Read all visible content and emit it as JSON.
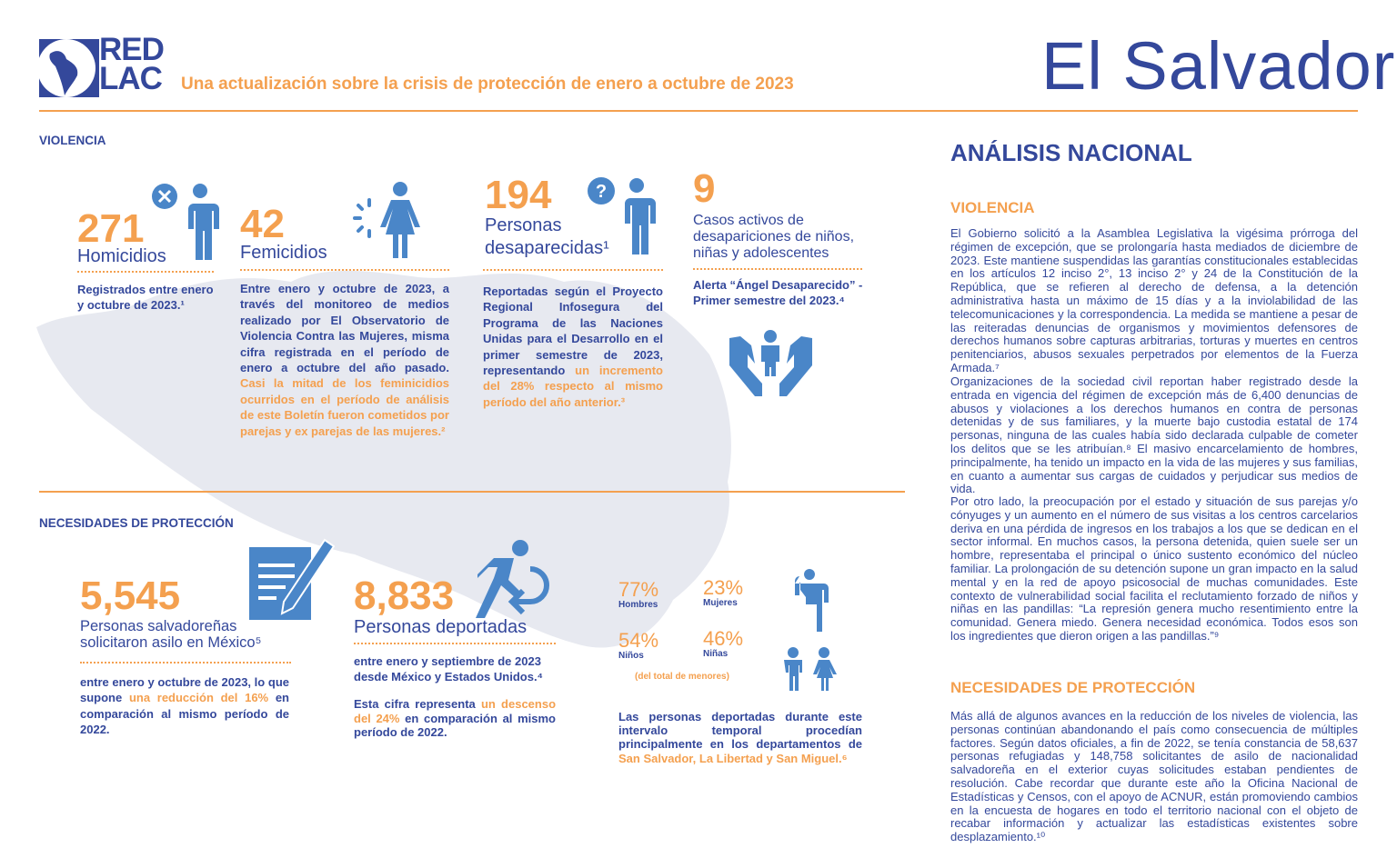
{
  "header": {
    "logo_text": [
      "RED",
      "LAC"
    ],
    "subtitle": "Una actualización sobre la crisis de protección de enero a octubre de 2023",
    "country": "El Salvador"
  },
  "colors": {
    "navy": "#34489b",
    "orange": "#f4a04f",
    "icon_blue": "#4a86c8",
    "map_gray": "#e7e9f0"
  },
  "violencia": {
    "section_label": "VIOLENCIA",
    "homicidios": {
      "number": "271",
      "label": "Homicidios",
      "text": "Registrados entre enero y octubre de 2023.¹",
      "icon": "person-x-icon"
    },
    "femicidios": {
      "number": "42",
      "label": "Femicidios",
      "text": "Entre enero y octubre de 2023, a través del monitoreo de medios realizado por El Observatorio de Violencia Contra las Mujeres, misma cifra registrada en el período de enero a octubre del año pasado. ",
      "highlight": "Casi la mitad de los feminicidios ocurridos en el período de análisis de este Boletín fueron cometidos por parejas y ex parejas de las mujeres.²",
      "icon": "woman-icon"
    },
    "desaparecidas": {
      "number": "194",
      "label1": "Personas",
      "label2": "desaparecidas¹",
      "text": "Reportadas según el Proyecto Regional Infosegura del Programa de las Naciones Unidas para el Desarrollo en el primer semestre de 2023, representando ",
      "highlight": "un incremento del 28% respecto al mismo período del año anterior.³",
      "icon": "person-question-icon"
    },
    "casos": {
      "number": "9",
      "label": "Casos activos de desapariciones de niños, niñas y adolescentes",
      "text": "Alerta “Ángel Desaparecido” - Primer semestre del 2023.⁴",
      "icon": "hands-child-icon"
    }
  },
  "necesidades": {
    "section_label": "NECESIDADES DE PROTECCIÓN",
    "asilo": {
      "number": "5,545",
      "label": "Personas salvadoreñas solicitaron asilo en México⁵",
      "text_a": "entre enero y octubre de 2023, lo que supone ",
      "highlight": "una reducción del 16%",
      "text_b": " en comparación al mismo período de 2022.",
      "icon": "document-pen-icon"
    },
    "deportadas": {
      "number": "8,833",
      "label": "Personas deportadas",
      "text1": "entre enero y septiembre de 2023 desde México y Estados Unidos.⁴",
      "text2_a": "Esta cifra representa ",
      "highlight": "un descenso del 24%",
      "text2_b": " en comparación al mismo período de 2022.",
      "icon": "running-return-icon"
    },
    "stats": [
      {
        "pct": "77%",
        "label": "Hombres"
      },
      {
        "pct": "23%",
        "label": "Mujeres"
      },
      {
        "pct": "54%",
        "label": "Niños"
      },
      {
        "pct": "46%",
        "label": "Niñas"
      }
    ],
    "stats_note": "(del total de menores)",
    "origen_text": "Las personas deportadas durante este intervalo temporal procedían principalmente en los departamentos de ",
    "origen_highlight": "San Salvador, La Libertad y San Miguel.⁶"
  },
  "analisis": {
    "title": "ANÁLISIS NACIONAL",
    "violencia_heading": "VIOLENCIA",
    "p1": "El Gobierno solicitó a la Asamblea Legislativa la vigésima prórroga del régimen de excepción, que se prolongaría hasta mediados de diciembre de 2023. Este mantiene suspendidas las garantías constitucionales establecidas en los artículos 12 inciso 2°, 13 inciso 2° y 24 de la Constitución de la República, que se refieren al derecho de defensa, a la detención administrativa hasta un máximo de 15 días y a la inviolabilidad de las telecomunicaciones y la correspondencia. La medida se mantiene a pesar de las reiteradas denuncias de organismos y movimientos defensores de derechos humanos sobre capturas arbitrarias, torturas y muertes en centros penitenciarios, abusos sexuales perpetrados por elementos de la Fuerza Armada.⁷",
    "p2": "Organizaciones de la sociedad civil reportan haber registrado desde la entrada en vigencia del régimen de excepción más de 6,400 denuncias de abusos y violaciones a los derechos humanos en contra de personas detenidas y de sus familiares, y la muerte bajo custodia estatal de 174 personas, ninguna de las cuales había sido declarada culpable de cometer los delitos que se les atribuían.⁸ El masivo encarcelamiento de hombres, principalmente, ha tenido un impacto en la vida de las mujeres y sus familias, en cuanto a aumentar sus cargas de cuidados y perjudicar sus medios de vida.",
    "p3": "Por otro lado, la preocupación por el estado y situación de sus parejas y/o cónyuges y un aumento en el número de sus visitas a los centros carcelarios deriva en una pérdida de ingresos en los trabajos a los que se dedican en el sector informal. En muchos casos, la persona detenida, quien suele ser un hombre, representaba el principal o único sustento económico del núcleo familiar. La prolongación de su detención supone un gran impacto en la salud mental y en la red de apoyo psicosocial de muchas comunidades. Este contexto de vulnerabilidad social facilita el reclutamiento forzado de niños y niñas en las pandillas: “La represión genera mucho resentimiento entre la comunidad. Genera miedo. Genera necesidad económica. Todos esos son los ingredientes que dieron origen a las pandillas.”⁹",
    "necesidades_heading": "NECESIDADES DE PROTECCIÓN",
    "p4": "Más allá de algunos avances en la reducción de los niveles de violencia, las personas continúan abandonando el país como consecuencia de múltiples factores. Según datos oficiales, a fin de 2022, se tenía constancia de 58,637 personas refugiadas y 148,758 solicitantes de asilo de nacionalidad salvadoreña en el exterior cuyas solicitudes estaban pendientes de resolución. Cabe recordar que durante este año la Oficina Nacional de Estadísticas y Censos, con el apoyo de ACNUR, están promoviendo cambios en la encuesta de hogares en todo el territorio nacional con el objeto de recabar información y actualizar las estadísticas existentes sobre desplazamiento.¹⁰"
  }
}
